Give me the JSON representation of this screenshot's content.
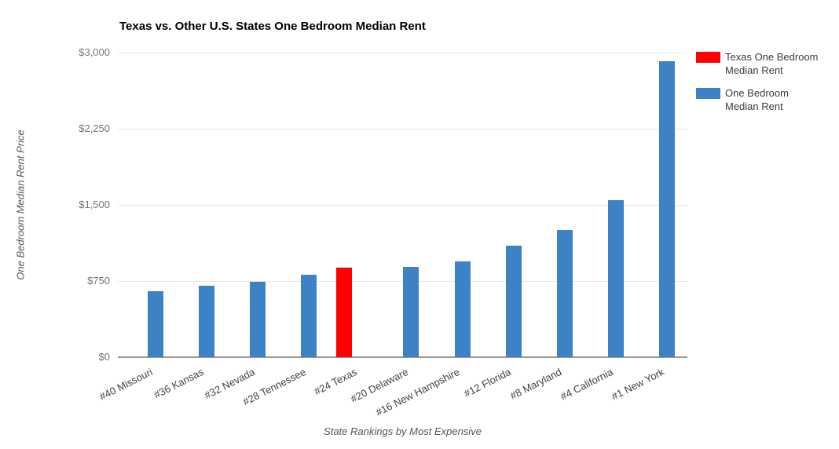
{
  "title": "Texas vs. Other U.S. States One Bedroom Median Rent",
  "colors": {
    "texas_bar": "#ff0000",
    "other_bar": "#3d82c4",
    "gridline": "#e7e7e7",
    "axis_line": "#999999"
  },
  "legend": {
    "items": [
      {
        "name": "texas-one-bedroom-median-rent",
        "color": "#ff0000",
        "label": "Texas One Bedroom Median Rent",
        "lines": [
          "Texas One Bedroom",
          "Median Rent"
        ]
      },
      {
        "name": "one-bedroom-median-rent",
        "color": "#3d82c4",
        "label": "One Bedroom Median Rent",
        "lines": [
          "One Bedroom",
          "Median Rent"
        ]
      }
    ]
  },
  "chart_data": {
    "type": "bar",
    "title": "Texas vs. Other U.S. States One Bedroom Median Rent",
    "xlabel": "State Rankings by Most Expensive",
    "ylabel": "One Bedroom Median Rent Price",
    "categories": [
      "#40 Missouri",
      "#36 Kansas",
      "#32 Nevada",
      "#28 Tennessee",
      "#24 Texas",
      "#20 Delaware",
      "#16 New Hampshire",
      "#12 Florida",
      "#8 Maryland",
      "#4 California",
      "#1 New York"
    ],
    "series": [
      {
        "name": "Texas One Bedroom Median Rent",
        "color": "#ff0000",
        "values": [
          null,
          null,
          null,
          null,
          880,
          null,
          null,
          null,
          null,
          null,
          null
        ]
      },
      {
        "name": "One Bedroom Median Rent",
        "color": "#3d82c4",
        "values": [
          650,
          700,
          745,
          810,
          null,
          890,
          940,
          1095,
          1255,
          1550,
          2915
        ]
      }
    ],
    "ylim": [
      0,
      3000
    ],
    "y_ticks": [
      {
        "value": 0,
        "label": "$0"
      },
      {
        "value": 750,
        "label": "$750"
      },
      {
        "value": 1500,
        "label": "$1,500"
      },
      {
        "value": 2250,
        "label": "$2,250"
      },
      {
        "value": 3000,
        "label": "$3,000"
      }
    ],
    "grid": true,
    "legend_position": "right"
  }
}
